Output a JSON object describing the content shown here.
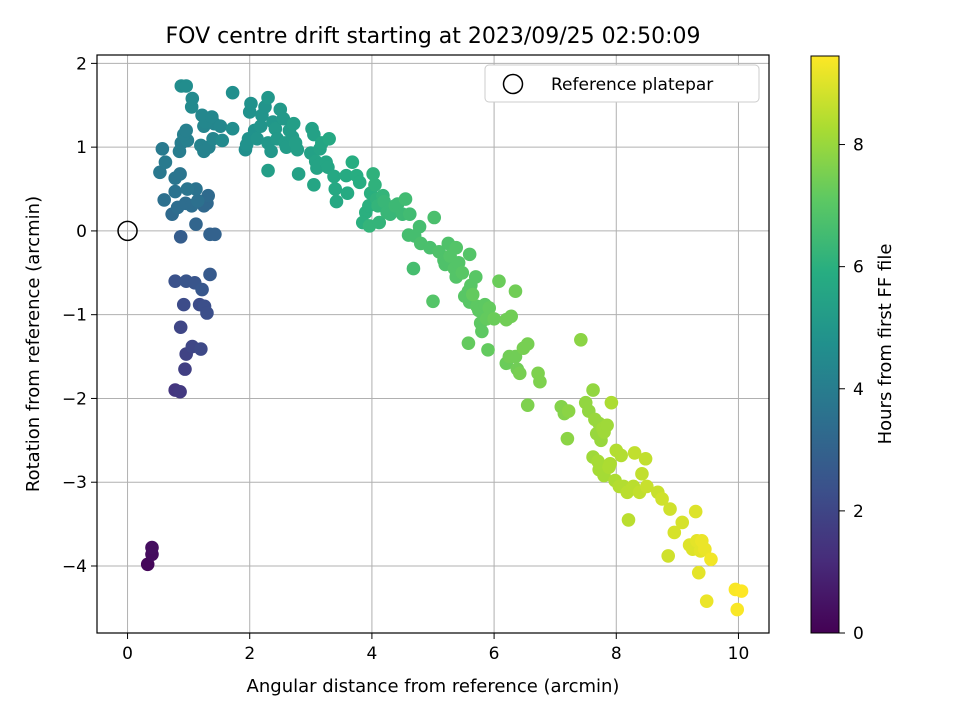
{
  "chart_data": {
    "type": "scatter",
    "title": "FOV centre drift starting at 2023/09/25 02:50:09",
    "xlabel": "Angular distance from reference (arcmin)",
    "ylabel": "Rotation from reference (arcmin)",
    "xlim": [
      -0.5,
      10.5
    ],
    "ylim": [
      -4.8,
      2.1
    ],
    "xticks": [
      "0",
      "2",
      "4",
      "6",
      "8",
      "10"
    ],
    "yticks": [
      "2",
      "1",
      "0",
      "−1",
      "−2",
      "−3",
      "−4"
    ],
    "grid": true,
    "legend": {
      "placement": "top-right",
      "entries": [
        "Reference platepar"
      ]
    },
    "reference_point": {
      "x": 0,
      "y": 0
    },
    "colorbar": {
      "label": "Hours from first FF file",
      "range": [
        0,
        9.45
      ],
      "ticks": [
        "0",
        "2",
        "4",
        "6",
        "8"
      ],
      "colormap": "viridis"
    },
    "points": [
      [
        0.33,
        -3.98,
        0.2
      ],
      [
        0.4,
        -3.86,
        0.3
      ],
      [
        0.4,
        -3.78,
        0.35
      ],
      [
        0.78,
        -1.9,
        1.5
      ],
      [
        0.86,
        -1.92,
        1.6
      ],
      [
        0.94,
        -1.65,
        1.8
      ],
      [
        0.96,
        -1.47,
        1.9
      ],
      [
        1.06,
        -1.38,
        2.0
      ],
      [
        1.2,
        -1.41,
        2.1
      ],
      [
        0.87,
        -1.15,
        2.0
      ],
      [
        1.18,
        -0.88,
        2.2
      ],
      [
        1.26,
        -0.9,
        2.3
      ],
      [
        1.3,
        -0.98,
        2.3
      ],
      [
        0.92,
        -0.88,
        2.2
      ],
      [
        0.78,
        -0.6,
        2.4
      ],
      [
        0.96,
        -0.6,
        2.5
      ],
      [
        1.1,
        -0.62,
        2.5
      ],
      [
        1.22,
        -0.7,
        2.6
      ],
      [
        1.35,
        -0.52,
        2.7
      ],
      [
        0.87,
        -0.07,
        2.8
      ],
      [
        1.35,
        -0.04,
        3.0
      ],
      [
        1.43,
        -0.04,
        3.0
      ],
      [
        1.12,
        0.08,
        3.1
      ],
      [
        1.25,
        0.3,
        3.2
      ],
      [
        1.3,
        0.33,
        3.2
      ],
      [
        1.32,
        0.42,
        3.3
      ],
      [
        0.73,
        0.2,
        3.3
      ],
      [
        0.82,
        0.28,
        3.4
      ],
      [
        0.95,
        0.33,
        3.4
      ],
      [
        1.05,
        0.3,
        3.4
      ],
      [
        1.15,
        0.36,
        3.5
      ],
      [
        0.6,
        0.37,
        3.5
      ],
      [
        1.12,
        0.5,
        3.6
      ],
      [
        0.78,
        0.47,
        3.6
      ],
      [
        0.78,
        0.63,
        3.7
      ],
      [
        0.86,
        0.68,
        3.7
      ],
      [
        0.98,
        0.5,
        3.7
      ],
      [
        0.53,
        0.7,
        3.8
      ],
      [
        0.57,
        0.98,
        3.9
      ],
      [
        0.62,
        0.82,
        3.9
      ],
      [
        0.85,
        0.95,
        4.0
      ],
      [
        0.88,
        1.05,
        4.0
      ],
      [
        0.98,
        1.08,
        4.1
      ],
      [
        0.92,
        1.15,
        4.1
      ],
      [
        0.96,
        1.2,
        4.1
      ],
      [
        1.2,
        1.02,
        4.2
      ],
      [
        1.25,
        0.95,
        4.2
      ],
      [
        1.33,
        1.0,
        4.2
      ],
      [
        1.4,
        1.1,
        4.3
      ],
      [
        1.42,
        1.28,
        4.3
      ],
      [
        1.25,
        1.25,
        4.3
      ],
      [
        1.28,
        1.3,
        4.4
      ],
      [
        1.22,
        1.38,
        4.4
      ],
      [
        1.38,
        1.36,
        4.4
      ],
      [
        1.52,
        1.25,
        4.4
      ],
      [
        1.55,
        1.08,
        4.5
      ],
      [
        1.05,
        1.48,
        4.5
      ],
      [
        1.06,
        1.58,
        4.5
      ],
      [
        0.88,
        1.73,
        4.6
      ],
      [
        0.96,
        1.73,
        4.6
      ],
      [
        1.72,
        1.22,
        4.6
      ],
      [
        1.72,
        1.65,
        4.7
      ],
      [
        1.93,
        0.97,
        4.7
      ],
      [
        1.95,
        1.03,
        4.8
      ],
      [
        1.98,
        1.1,
        4.8
      ],
      [
        2.0,
        1.42,
        4.8
      ],
      [
        2.02,
        1.52,
        4.8
      ],
      [
        2.08,
        1.2,
        4.8
      ],
      [
        2.12,
        1.1,
        4.9
      ],
      [
        2.18,
        1.25,
        4.9
      ],
      [
        2.2,
        1.38,
        4.9
      ],
      [
        2.25,
        1.48,
        4.9
      ],
      [
        2.3,
        1.59,
        5.0
      ],
      [
        2.3,
        1.05,
        5.0
      ],
      [
        2.35,
        0.95,
        5.0
      ],
      [
        2.38,
        1.3,
        5.0
      ],
      [
        2.42,
        1.22,
        5.1
      ],
      [
        2.45,
        1.1,
        5.1
      ],
      [
        2.5,
        1.45,
        5.1
      ],
      [
        2.55,
        1.34,
        5.1
      ],
      [
        2.58,
        1.05,
        5.2
      ],
      [
        2.6,
        1.0,
        5.2
      ],
      [
        2.65,
        1.2,
        5.2
      ],
      [
        2.7,
        1.12,
        5.2
      ],
      [
        2.72,
        1.28,
        5.3
      ],
      [
        2.75,
        1.05,
        5.3
      ],
      [
        2.3,
        0.72,
        5.3
      ],
      [
        2.78,
        0.97,
        5.3
      ],
      [
        2.8,
        0.68,
        5.4
      ],
      [
        3.0,
        0.93,
        5.4
      ],
      [
        3.02,
        1.22,
        5.4
      ],
      [
        3.05,
        1.15,
        5.4
      ],
      [
        3.08,
        0.83,
        5.5
      ],
      [
        3.1,
        0.75,
        5.5
      ],
      [
        3.12,
        0.78,
        5.5
      ],
      [
        3.15,
        0.98,
        5.5
      ],
      [
        3.18,
        1.05,
        5.6
      ],
      [
        3.05,
        0.55,
        5.6
      ],
      [
        3.25,
        0.82,
        5.6
      ],
      [
        3.28,
        0.76,
        5.6
      ],
      [
        3.3,
        1.1,
        5.7
      ],
      [
        3.38,
        0.65,
        5.7
      ],
      [
        3.4,
        0.5,
        5.7
      ],
      [
        3.42,
        0.35,
        5.7
      ],
      [
        3.58,
        0.66,
        5.8
      ],
      [
        3.6,
        0.45,
        5.8
      ],
      [
        3.68,
        0.82,
        5.9
      ],
      [
        3.75,
        0.66,
        5.9
      ],
      [
        3.8,
        0.58,
        5.9
      ],
      [
        3.9,
        0.22,
        6.0
      ],
      [
        3.95,
        0.3,
        6.0
      ],
      [
        3.98,
        0.45,
        6.0
      ],
      [
        3.85,
        0.1,
        6.0
      ],
      [
        4.02,
        0.68,
        6.1
      ],
      [
        4.05,
        0.55,
        6.1
      ],
      [
        4.08,
        0.38,
        6.1
      ],
      [
        4.1,
        0.3,
        6.2
      ],
      [
        3.96,
        0.06,
        6.2
      ],
      [
        4.12,
        0.1,
        6.2
      ],
      [
        4.18,
        0.42,
        6.2
      ],
      [
        4.2,
        0.35,
        6.3
      ],
      [
        4.25,
        0.22,
        6.3
      ],
      [
        4.3,
        0.2,
        6.3
      ],
      [
        4.38,
        0.3,
        6.4
      ],
      [
        4.42,
        0.32,
        6.4
      ],
      [
        4.5,
        0.2,
        6.4
      ],
      [
        4.55,
        0.38,
        6.5
      ],
      [
        4.62,
        0.2,
        6.5
      ],
      [
        4.6,
        -0.05,
        6.6
      ],
      [
        4.7,
        -0.06,
        6.6
      ],
      [
        4.78,
        0.05,
        6.6
      ],
      [
        4.68,
        -0.45,
        6.6
      ],
      [
        4.8,
        -0.15,
        6.7
      ],
      [
        4.95,
        -0.2,
        6.7
      ],
      [
        5.1,
        -0.25,
        6.8
      ],
      [
        5.18,
        -0.35,
        6.8
      ],
      [
        5.2,
        -0.4,
        6.8
      ],
      [
        5.25,
        -0.15,
        6.8
      ],
      [
        5.28,
        -0.3,
        6.9
      ],
      [
        5.35,
        -0.45,
        6.9
      ],
      [
        5.38,
        -0.55,
        6.9
      ],
      [
        5.42,
        -0.38,
        6.9
      ],
      [
        5.48,
        -0.5,
        7.0
      ],
      [
        5.52,
        -0.78,
        7.0
      ],
      [
        5.58,
        -0.72,
        7.0
      ],
      [
        5.6,
        -0.85,
        7.0
      ],
      [
        5.62,
        -0.65,
        7.0
      ],
      [
        5.7,
        -0.55,
        7.0
      ],
      [
        5.72,
        -0.9,
        7.1
      ],
      [
        5.75,
        -0.95,
        7.1
      ],
      [
        5.78,
        -1.1,
        7.1
      ],
      [
        5.8,
        -1.2,
        7.1
      ],
      [
        5.85,
        -0.88,
        7.1
      ],
      [
        5.88,
        -1.05,
        7.2
      ],
      [
        5.9,
        -1.42,
        7.2
      ],
      [
        5.92,
        -0.92,
        7.2
      ],
      [
        5.58,
        -1.34,
        7.2
      ],
      [
        5.65,
        -0.76,
        7.2
      ],
      [
        5.02,
        0.16,
        6.7
      ],
      [
        5.0,
        -0.84,
        6.9
      ],
      [
        5.38,
        -0.2,
        6.9
      ],
      [
        5.6,
        -0.28,
        6.9
      ],
      [
        6.0,
        -1.05,
        7.3
      ],
      [
        6.08,
        -0.6,
        7.3
      ],
      [
        6.2,
        -1.58,
        7.3
      ],
      [
        6.25,
        -1.5,
        7.4
      ],
      [
        6.35,
        -1.5,
        7.4
      ],
      [
        6.38,
        -1.65,
        7.4
      ],
      [
        6.42,
        -1.7,
        7.5
      ],
      [
        6.48,
        -1.4,
        7.5
      ],
      [
        6.55,
        -1.35,
        7.5
      ],
      [
        6.55,
        -2.08,
        7.6
      ],
      [
        6.72,
        -1.7,
        7.6
      ],
      [
        6.75,
        -1.8,
        7.6
      ],
      [
        6.28,
        -1.02,
        7.4
      ],
      [
        6.35,
        -0.72,
        7.4
      ],
      [
        6.2,
        -1.06,
        7.4
      ],
      [
        7.1,
        -2.1,
        7.7
      ],
      [
        7.15,
        -2.18,
        7.7
      ],
      [
        7.2,
        -2.48,
        7.8
      ],
      [
        7.22,
        -2.15,
        7.8
      ],
      [
        7.42,
        -1.3,
        7.8
      ],
      [
        7.5,
        -2.05,
        7.9
      ],
      [
        7.55,
        -2.15,
        7.9
      ],
      [
        7.62,
        -1.9,
        7.9
      ],
      [
        7.65,
        -2.25,
        8.0
      ],
      [
        7.68,
        -2.42,
        8.0
      ],
      [
        7.72,
        -2.3,
        8.0
      ],
      [
        7.75,
        -2.5,
        8.0
      ],
      [
        7.78,
        -2.36,
        8.1
      ],
      [
        7.8,
        -2.4,
        8.1
      ],
      [
        7.85,
        -2.32,
        8.1
      ],
      [
        7.62,
        -2.7,
        8.1
      ],
      [
        7.7,
        -2.75,
        8.2
      ],
      [
        7.72,
        -2.85,
        8.2
      ],
      [
        7.75,
        -2.8,
        8.2
      ],
      [
        7.8,
        -2.92,
        8.2
      ],
      [
        7.88,
        -2.82,
        8.3
      ],
      [
        7.9,
        -2.78,
        8.3
      ],
      [
        7.92,
        -2.05,
        8.3
      ],
      [
        7.98,
        -2.98,
        8.3
      ],
      [
        8.05,
        -3.05,
        8.4
      ],
      [
        8.0,
        -2.62,
        8.4
      ],
      [
        8.08,
        -2.68,
        8.4
      ],
      [
        8.12,
        -3.05,
        8.4
      ],
      [
        8.18,
        -3.12,
        8.5
      ],
      [
        8.2,
        -3.45,
        8.5
      ],
      [
        8.25,
        -3.08,
        8.5
      ],
      [
        8.28,
        -3.05,
        8.5
      ],
      [
        8.3,
        -2.65,
        8.6
      ],
      [
        8.38,
        -3.12,
        8.6
      ],
      [
        8.42,
        -2.9,
        8.6
      ],
      [
        8.48,
        -2.72,
        8.6
      ],
      [
        8.5,
        -3.05,
        8.7
      ],
      [
        8.68,
        -3.12,
        8.7
      ],
      [
        8.75,
        -3.2,
        8.8
      ],
      [
        8.88,
        -3.32,
        8.8
      ],
      [
        8.85,
        -3.88,
        8.8
      ],
      [
        8.95,
        -3.6,
        8.9
      ],
      [
        9.08,
        -3.48,
        8.9
      ],
      [
        9.2,
        -3.75,
        9.0
      ],
      [
        9.25,
        -3.8,
        9.0
      ],
      [
        9.3,
        -3.35,
        9.0
      ],
      [
        9.32,
        -3.7,
        9.1
      ],
      [
        9.35,
        -4.08,
        9.1
      ],
      [
        9.38,
        -3.82,
        9.1
      ],
      [
        9.4,
        -3.7,
        9.2
      ],
      [
        9.45,
        -3.8,
        9.2
      ],
      [
        9.48,
        -4.42,
        9.2
      ],
      [
        9.55,
        -3.92,
        9.3
      ],
      [
        9.95,
        -4.28,
        9.4
      ],
      [
        9.98,
        -4.52,
        9.4
      ],
      [
        10.05,
        -4.3,
        9.45
      ]
    ]
  }
}
